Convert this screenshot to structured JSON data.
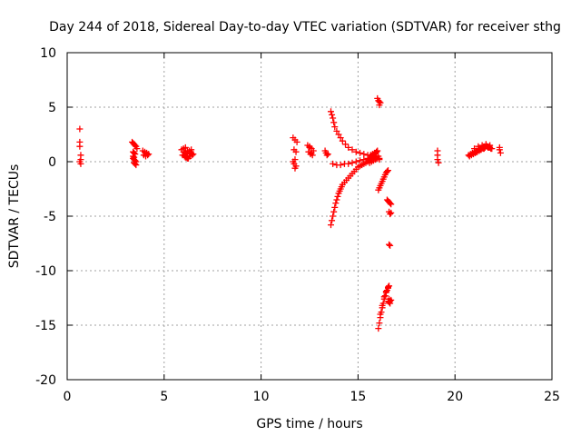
{
  "chart_data": {
    "type": "scatter",
    "title": "Day 244 of 2018, Sidereal Day-to-day VTEC variation (SDTVAR) for receiver sthg",
    "xlabel": "GPS time / hours",
    "ylabel": "SDTVAR / TECUs",
    "xlim": [
      0,
      25
    ],
    "ylim": [
      -20,
      10
    ],
    "x_ticks": [
      0,
      5,
      10,
      15,
      20,
      25
    ],
    "y_ticks": [
      10,
      5,
      0,
      -5,
      -10,
      -15,
      -20
    ],
    "grid": true,
    "marker": "+",
    "marker_color": "#ff0000",
    "series": [
      {
        "name": "SDTVAR",
        "x": [
          0.65,
          0.65,
          0.65,
          0.7,
          0.7,
          0.7,
          0.65,
          3.35,
          3.4,
          3.45,
          3.5,
          3.55,
          3.6,
          3.4,
          3.45,
          3.5,
          3.4,
          3.45,
          3.5,
          3.55,
          3.45,
          3.5,
          3.55,
          3.4,
          3.45,
          3.9,
          4.0,
          4.1,
          4.2,
          3.95,
          4.05,
          4.15,
          5.9,
          6.0,
          6.1,
          6.2,
          6.3,
          6.4,
          6.5,
          5.95,
          6.05,
          6.15,
          6.25,
          6.35,
          6.45,
          6.0,
          6.1,
          6.2,
          6.3,
          6.4,
          6.1,
          6.2,
          6.3,
          11.65,
          11.75,
          11.85,
          11.7,
          11.8,
          11.7,
          11.8,
          11.75,
          11.65,
          11.75,
          12.4,
          12.5,
          12.6,
          12.7,
          12.45,
          12.55,
          12.65,
          12.5,
          12.6,
          13.3,
          13.35,
          13.4,
          13.45,
          13.6,
          13.65,
          13.7,
          13.75,
          13.8,
          13.9,
          14.0,
          14.1,
          14.2,
          14.35,
          14.5,
          14.7,
          14.9,
          15.1,
          15.3,
          15.5,
          15.7,
          15.9,
          13.7,
          13.9,
          14.1,
          14.3,
          14.5,
          14.7,
          14.9,
          15.1,
          15.3,
          15.5,
          15.7,
          15.9,
          16.1,
          13.6,
          13.65,
          13.7,
          13.75,
          13.8,
          13.85,
          13.9,
          13.95,
          14.0,
          14.05,
          14.1,
          14.15,
          14.2,
          14.3,
          14.4,
          14.5,
          14.6,
          14.7,
          14.8,
          14.9,
          15.0,
          15.1,
          15.2,
          15.3,
          15.4,
          15.5,
          15.55,
          15.6,
          15.65,
          15.7,
          15.75,
          15.8,
          15.85,
          15.9,
          15.95,
          16.0,
          16.05,
          16.1,
          15.6,
          15.7,
          15.8,
          15.9,
          16.0,
          15.65,
          15.75,
          15.85,
          15.95,
          16.0,
          16.05,
          16.1,
          16.15,
          16.1,
          16.05,
          16.1,
          16.15,
          16.2,
          16.25,
          16.3,
          16.35,
          16.4,
          16.45,
          16.5,
          16.55,
          16.05,
          16.1,
          16.15,
          16.2,
          16.25,
          16.3,
          16.35,
          16.4,
          16.45,
          16.5,
          16.55,
          16.6,
          16.15,
          16.25,
          16.35,
          16.45,
          16.55,
          16.5,
          16.55,
          16.6,
          16.65,
          16.7,
          16.55,
          16.6,
          16.65,
          16.7,
          16.6,
          16.65,
          16.6,
          16.65,
          16.6,
          16.65,
          16.7,
          19.1,
          19.1,
          19.1,
          19.15,
          20.7,
          20.8,
          20.9,
          21.0,
          21.1,
          21.2,
          21.3,
          21.4,
          21.5,
          21.6,
          21.7,
          21.8,
          21.9,
          20.75,
          20.85,
          20.95,
          21.05,
          21.15,
          21.25,
          21.35,
          21.45,
          21.55,
          21.65,
          21.75,
          21.85,
          21.0,
          21.2,
          21.4,
          21.6,
          21.8,
          21.1,
          21.3,
          21.5,
          21.7,
          22.3,
          22.3,
          22.35
        ],
        "y": [
          3.0,
          1.8,
          1.4,
          0.6,
          0.2,
          -0.2,
          0.0,
          1.8,
          1.7,
          1.6,
          1.5,
          1.4,
          1.2,
          0.9,
          0.8,
          0.7,
          0.3,
          0.2,
          0.1,
          0.0,
          -0.1,
          -0.2,
          -0.3,
          0.5,
          0.4,
          1.0,
          0.9,
          0.8,
          0.7,
          0.6,
          0.5,
          0.6,
          1.1,
          1.2,
          1.3,
          1.0,
          0.9,
          0.8,
          0.7,
          0.6,
          0.5,
          0.4,
          0.3,
          0.5,
          0.6,
          0.9,
          0.8,
          0.7,
          1.0,
          1.1,
          0.4,
          0.3,
          0.5,
          2.2,
          2.0,
          1.8,
          1.1,
          0.9,
          -0.2,
          -0.4,
          -0.6,
          0.0,
          0.2,
          1.5,
          1.4,
          1.2,
          1.0,
          0.9,
          0.7,
          0.6,
          1.3,
          0.8,
          1.0,
          0.8,
          0.6,
          0.7,
          4.6,
          4.3,
          4.0,
          3.6,
          3.2,
          2.8,
          2.5,
          2.2,
          1.9,
          1.6,
          1.3,
          1.1,
          0.9,
          0.8,
          0.7,
          0.6,
          0.5,
          0.4,
          -0.2,
          -0.3,
          -0.3,
          -0.2,
          -0.2,
          -0.1,
          0.0,
          0.1,
          0.2,
          0.3,
          0.4,
          0.3,
          0.2,
          -5.8,
          -5.4,
          -5.0,
          -4.6,
          -4.2,
          -3.8,
          -3.5,
          -3.2,
          -2.9,
          -2.7,
          -2.5,
          -2.3,
          -2.1,
          -1.9,
          -1.7,
          -1.5,
          -1.3,
          -1.1,
          -0.9,
          -0.7,
          -0.5,
          -0.4,
          -0.3,
          -0.2,
          -0.1,
          0.0,
          0.1,
          0.2,
          0.3,
          0.4,
          0.5,
          0.6,
          0.7,
          0.8,
          0.9,
          1.0,
          0.5,
          0.3,
          -0.1,
          0.0,
          0.1,
          0.2,
          0.3,
          0.6,
          0.7,
          0.8,
          0.9,
          5.8,
          5.6,
          5.5,
          5.4,
          5.2,
          -2.6,
          -2.4,
          -2.2,
          -2.0,
          -1.8,
          -1.6,
          -1.4,
          -1.2,
          -1.0,
          -0.9,
          -0.8,
          -15.3,
          -14.8,
          -14.3,
          -13.8,
          -13.4,
          -13.0,
          -12.6,
          -12.3,
          -12.0,
          -11.8,
          -11.6,
          -11.4,
          -14.0,
          -13.2,
          -12.4,
          -11.9,
          -11.5,
          -3.5,
          -3.6,
          -3.7,
          -3.8,
          -3.9,
          -12.8,
          -12.9,
          -13.0,
          -12.7,
          -12.6,
          -12.8,
          -7.6,
          -7.7,
          -4.6,
          -4.8,
          -4.7,
          1.0,
          0.6,
          0.2,
          -0.1,
          0.6,
          0.7,
          0.8,
          0.9,
          1.0,
          1.1,
          1.2,
          1.3,
          1.4,
          1.5,
          1.4,
          1.3,
          1.2,
          0.5,
          0.6,
          0.7,
          0.8,
          0.9,
          1.0,
          1.1,
          1.2,
          1.3,
          1.4,
          1.3,
          1.2,
          1.2,
          1.4,
          1.5,
          1.6,
          1.5,
          0.9,
          1.1,
          1.2,
          1.3,
          1.3,
          1.1,
          0.8
        ]
      }
    ]
  }
}
